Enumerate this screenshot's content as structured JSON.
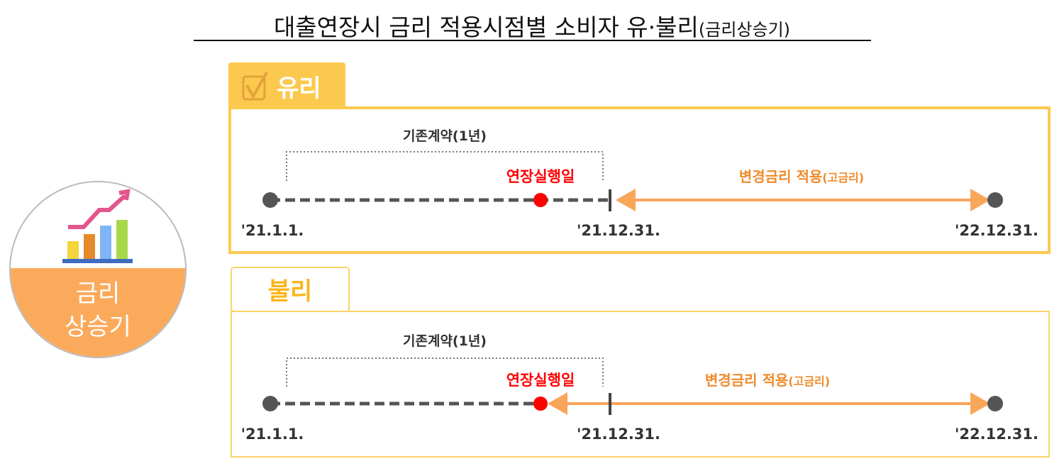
{
  "title": {
    "main": "대출연장시 금리 적용시점별 소비자 유·불리",
    "sub": "(금리상승기)"
  },
  "badge": {
    "line1": "금리",
    "line2": "상승기",
    "icon": "bar-chart-rising-icon"
  },
  "colors": {
    "accent": "#fcc94f",
    "orange": "#fbaa5c",
    "arrow": "#f9a55a",
    "red": "#ff0000",
    "gray": "#555555",
    "bad_label": "#fbb51c"
  },
  "panels": [
    {
      "label": "유리",
      "icon": "checkbox-checked-icon",
      "contract_label": "기존계약(1년)",
      "execution_label": "연장실행일",
      "new_rate_label": "변경금리 적용",
      "new_rate_sub": "(고금리)",
      "dates": [
        "'21.1.1.",
        "'21.12.31.",
        "'22.12.31."
      ]
    },
    {
      "label": "불리",
      "contract_label": "기존계약(1년)",
      "execution_label": "연장실행일",
      "new_rate_label": "변경금리 적용",
      "new_rate_sub": "(고금리)",
      "dates": [
        "'21.1.1.",
        "'21.12.31.",
        "'22.12.31."
      ]
    }
  ]
}
